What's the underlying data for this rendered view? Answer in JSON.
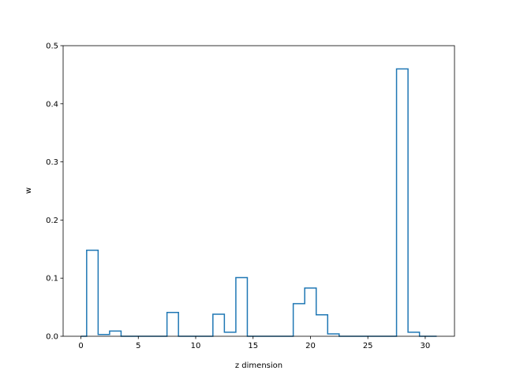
{
  "chart_data": {
    "type": "step",
    "title": "",
    "xlabel": "z dimension",
    "ylabel": "w",
    "xlim": [
      -1.55,
      32.55
    ],
    "ylim": [
      0,
      0.5
    ],
    "xticks": [
      0,
      5,
      10,
      15,
      20,
      25,
      30
    ],
    "yticks": [
      0.0,
      0.1,
      0.2,
      0.3,
      0.4,
      0.5
    ],
    "ytick_labels": [
      "0.0",
      "0.1",
      "0.2",
      "0.3",
      "0.4",
      "0.5"
    ],
    "grid": false,
    "line_color": "#1f77b4",
    "series": [
      {
        "x": [
          0,
          1,
          2,
          3,
          4,
          5,
          6,
          7,
          8,
          9,
          10,
          11,
          12,
          13,
          14,
          15,
          16,
          17,
          18,
          19,
          20,
          21,
          22,
          23,
          24,
          25,
          26,
          27,
          28,
          29,
          30,
          31
        ],
        "values": [
          0.0,
          0.148,
          0.003,
          0.009,
          0.0,
          0.0,
          0.0,
          0.0,
          0.041,
          0.0,
          0.0,
          0.0,
          0.038,
          0.007,
          0.101,
          0.0,
          0.0,
          0.0,
          0.0,
          0.056,
          0.083,
          0.037,
          0.004,
          0.0,
          0.0,
          0.0,
          0.0,
          0.0,
          0.46,
          0.007,
          0.0,
          0.0
        ]
      }
    ]
  }
}
